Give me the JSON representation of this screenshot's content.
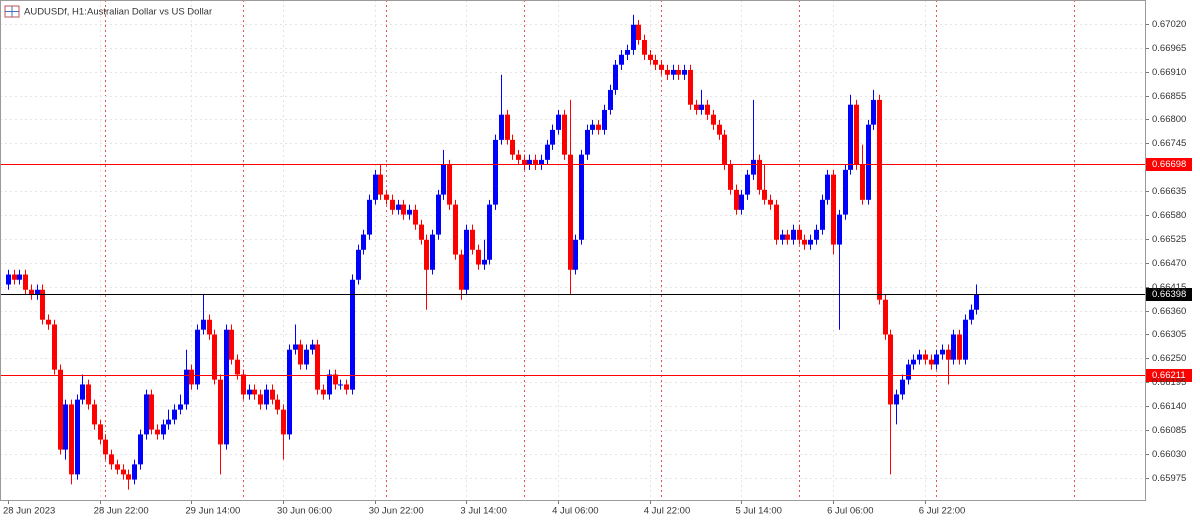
{
  "chart_data": {
    "type": "candlestick",
    "symbol": "AUDUSDf, H1:",
    "title": "Australian Dollar vs US Dollar",
    "up_color": "#0000ff",
    "down_color": "#ff0000",
    "grid": true,
    "ylim": [
      0.65924,
      0.67075
    ],
    "yticks": [
      {
        "value": 0.6702,
        "label": "0.67020"
      },
      0.66965,
      {
        "value": 0.6691,
        "label": "0.66910"
      },
      0.66855,
      {
        "value": 0.668,
        "label": "0.66800"
      },
      0.66745,
      0.66635,
      {
        "value": 0.6658,
        "label": "0.66580"
      },
      0.66525,
      {
        "value": 0.6647,
        "label": "0.66470"
      },
      0.66415,
      {
        "value": 0.6636,
        "label": "0.66360"
      },
      0.66305,
      {
        "value": 0.6625,
        "label": "0.66250"
      },
      0.66195,
      {
        "value": 0.6614,
        "label": "0.66140"
      },
      0.66085,
      {
        "value": 0.6603,
        "label": "0.66030"
      },
      0.65975
    ],
    "levels": [
      {
        "price": 0.66698,
        "color": "#ff0000"
      },
      {
        "price": 0.66398,
        "color": "#000000"
      },
      {
        "price": 0.66211,
        "color": "#ff0000"
      }
    ],
    "categories": [
      "28 Jun 2023",
      null,
      null,
      null,
      null,
      null,
      null,
      null,
      null,
      null,
      null,
      null,
      null,
      null,
      null,
      null,
      "28 Jun 22:00",
      null,
      null,
      null,
      null,
      null,
      null,
      null,
      null,
      null,
      null,
      null,
      null,
      null,
      null,
      null,
      "29 Jun 14:00",
      null,
      null,
      null,
      null,
      null,
      null,
      null,
      null,
      null,
      null,
      null,
      null,
      null,
      null,
      null,
      "30 Jun 06:00",
      null,
      null,
      null,
      null,
      null,
      null,
      null,
      null,
      null,
      null,
      null,
      null,
      null,
      null,
      null,
      "30 Jun 22:00",
      null,
      null,
      null,
      null,
      null,
      null,
      null,
      null,
      null,
      null,
      null,
      null,
      null,
      null,
      null,
      "3 Jul 14:00",
      null,
      null,
      null,
      null,
      null,
      null,
      null,
      null,
      null,
      null,
      null,
      null,
      null,
      null,
      null,
      "4 Jul 06:00",
      null,
      null,
      null,
      null,
      null,
      null,
      null,
      null,
      null,
      null,
      null,
      null,
      null,
      null,
      null,
      "4 Jul 22:00",
      null,
      null,
      null,
      null,
      null,
      null,
      null,
      null,
      null,
      null,
      null,
      null,
      null,
      null,
      null,
      "5 Jul 14:00",
      null,
      null,
      null,
      null,
      null,
      null,
      null,
      null,
      null,
      null,
      null,
      null,
      null,
      null,
      null,
      "6 Jul 06:00",
      null,
      null,
      null,
      null,
      null,
      null,
      null,
      null,
      null,
      null,
      null,
      null,
      null,
      null,
      null,
      "6 Jul 22:00",
      null,
      null,
      null,
      null,
      null,
      null,
      null,
      null,
      null
    ],
    "open": [
      0.6642,
      0.66443,
      0.66431,
      0.66443,
      0.66408,
      0.66397,
      0.66408,
      0.66339,
      0.66328,
      0.66224,
      0.6604,
      0.66144,
      0.65983,
      0.66155,
      0.6619,
      0.66144,
      0.66098,
      0.66063,
      0.66029,
      0.66006,
      0.65994,
      0.65983,
      0.65971,
      0.66006,
      0.66075,
      0.66167,
      0.66086,
      0.66075,
      0.66098,
      0.66109,
      0.66132,
      0.66144,
      0.66224,
      0.6619,
      0.66316,
      0.66339,
      0.66305,
      0.66201,
      0.66052,
      0.66316,
      0.66247,
      0.66213,
      0.66167,
      0.66178,
      0.66167,
      0.66144,
      0.66178,
      0.66155,
      0.66132,
      0.66075,
      0.6627,
      0.66282,
      0.66236,
      0.6627,
      0.66282,
      0.66178,
      0.66167,
      0.66213,
      0.6619,
      0.6619,
      0.66178,
      0.66431,
      0.665,
      0.66535,
      0.66615,
      0.66673,
      0.66627,
      0.66615,
      0.66592,
      0.66604,
      0.66581,
      0.66592,
      0.66558,
      0.66523,
      0.66454,
      0.66535,
      0.66627,
      0.66696,
      0.66604,
      0.66489,
      0.66408,
      0.66546,
      0.665,
      0.66466,
      0.66477,
      0.66604,
      0.66753,
      0.66811,
      0.66753,
      0.66719,
      0.66707,
      0.66696,
      0.66707,
      0.66696,
      0.66707,
      0.66742,
      0.66776,
      0.66811,
      0.66719,
      0.66454,
      0.66523,
      0.66719,
      0.66776,
      0.66788,
      0.66776,
      0.66822,
      0.66868,
      0.66926,
      0.66949,
      0.6696,
      0.67018,
      0.66983,
      0.66949,
      0.66937,
      0.66926,
      0.66914,
      0.66903,
      0.66914,
      0.66903,
      0.66914,
      0.66834,
      0.66822,
      0.66834,
      0.66811,
      0.66788,
      0.66765,
      0.66696,
      0.66638,
      0.66592,
      0.66627,
      0.66673,
      0.66707,
      0.66638,
      0.66615,
      0.66604,
      0.66523,
      0.66535,
      0.66523,
      0.66546,
      0.66523,
      0.66512,
      0.66523,
      0.66546,
      0.66615,
      0.66673,
      0.66512,
      0.66581,
      0.66684,
      0.66834,
      0.66696,
      0.66615,
      0.66788,
      0.66845,
      0.66385,
      0.66305,
      0.66144,
      0.66167,
      0.66201,
      0.66236,
      0.66247,
      0.66259,
      0.66247,
      0.66236,
      0.66259,
      0.6627,
      0.66247,
      0.66305,
      0.66247,
      0.66339,
      0.66362
    ],
    "high": [
      0.66454,
      0.66454,
      0.66454,
      0.66454,
      0.6642,
      0.6642,
      0.6642,
      0.66351,
      0.66339,
      0.66236,
      0.66155,
      0.66155,
      0.66167,
      0.66213,
      0.66201,
      0.66155,
      0.66109,
      0.66075,
      0.6604,
      0.66017,
      0.66006,
      0.65994,
      0.66017,
      0.66086,
      0.66178,
      0.66178,
      0.66098,
      0.66109,
      0.66132,
      0.66144,
      0.66167,
      0.6627,
      0.66236,
      0.66328,
      0.66397,
      0.66351,
      0.66316,
      0.66213,
      0.66328,
      0.66328,
      0.66259,
      0.66224,
      0.6619,
      0.6619,
      0.66178,
      0.6619,
      0.6619,
      0.66167,
      0.66144,
      0.66282,
      0.66328,
      0.66293,
      0.66282,
      0.66293,
      0.66293,
      0.6619,
      0.66224,
      0.66224,
      0.66201,
      0.66201,
      0.66443,
      0.66512,
      0.66546,
      0.66627,
      0.66684,
      0.66696,
      0.66638,
      0.66627,
      0.66615,
      0.66615,
      0.66604,
      0.66604,
      0.66569,
      0.66535,
      0.66546,
      0.66638,
      0.6673,
      0.66707,
      0.66615,
      0.665,
      0.66558,
      0.66558,
      0.66512,
      0.66523,
      0.66615,
      0.66765,
      0.66903,
      0.66822,
      0.66765,
      0.6673,
      0.66719,
      0.66719,
      0.66719,
      0.66719,
      0.66753,
      0.66788,
      0.66822,
      0.66822,
      0.66845,
      0.66535,
      0.6673,
      0.66788,
      0.66799,
      0.66799,
      0.66834,
      0.6688,
      0.66937,
      0.6696,
      0.66972,
      0.67041,
      0.67029,
      0.66995,
      0.6696,
      0.66949,
      0.66937,
      0.66926,
      0.66926,
      0.66926,
      0.66926,
      0.66926,
      0.66845,
      0.66868,
      0.66845,
      0.66822,
      0.66799,
      0.66776,
      0.66707,
      0.6665,
      0.66638,
      0.66684,
      0.66845,
      0.66719,
      0.66696,
      0.66627,
      0.66615,
      0.66546,
      0.66546,
      0.66558,
      0.66558,
      0.66535,
      0.66535,
      0.66558,
      0.66627,
      0.66684,
      0.66684,
      0.66592,
      0.66696,
      0.66857,
      0.66845,
      0.66742,
      0.66799,
      0.66868,
      0.66857,
      0.66397,
      0.66316,
      0.66178,
      0.66213,
      0.66247,
      0.66259,
      0.6627,
      0.6627,
      0.66259,
      0.6627,
      0.66282,
      0.66282,
      0.66316,
      0.66316,
      0.66351,
      0.66374,
      0.6642
    ],
    "low": [
      0.66408,
      0.6642,
      0.6642,
      0.66397,
      0.66385,
      0.66385,
      0.66328,
      0.66316,
      0.66213,
      0.66029,
      0.66017,
      0.6596,
      0.65971,
      0.66144,
      0.66132,
      0.66086,
      0.66052,
      0.66017,
      0.65994,
      0.65983,
      0.65971,
      0.65948,
      0.6596,
      0.65994,
      0.66063,
      0.66075,
      0.66063,
      0.66063,
      0.66086,
      0.66098,
      0.66121,
      0.66132,
      0.66178,
      0.66178,
      0.66305,
      0.66293,
      0.6619,
      0.65983,
      0.6604,
      0.66236,
      0.66201,
      0.66155,
      0.66155,
      0.66155,
      0.66132,
      0.66132,
      0.66144,
      0.66121,
      0.66017,
      0.66063,
      0.66259,
      0.66224,
      0.66224,
      0.66259,
      0.66167,
      0.66155,
      0.66155,
      0.66178,
      0.66178,
      0.66167,
      0.66167,
      0.6642,
      0.66489,
      0.66523,
      0.66604,
      0.66615,
      0.66604,
      0.66581,
      0.66581,
      0.66569,
      0.66569,
      0.66546,
      0.66512,
      0.66362,
      0.66443,
      0.66523,
      0.66615,
      0.66592,
      0.66477,
      0.66385,
      0.66397,
      0.66489,
      0.66454,
      0.66454,
      0.66466,
      0.66592,
      0.66742,
      0.66742,
      0.66707,
      0.66696,
      0.66684,
      0.66684,
      0.66684,
      0.66684,
      0.66696,
      0.6673,
      0.66765,
      0.66707,
      0.66397,
      0.66443,
      0.66512,
      0.66707,
      0.66765,
      0.66765,
      0.66765,
      0.66811,
      0.66857,
      0.66914,
      0.66937,
      0.66949,
      0.66972,
      0.66937,
      0.66926,
      0.66914,
      0.66903,
      0.66891,
      0.66891,
      0.66891,
      0.66891,
      0.66822,
      0.66811,
      0.66811,
      0.66799,
      0.66776,
      0.66753,
      0.66684,
      0.66627,
      0.66581,
      0.66581,
      0.66615,
      0.66661,
      0.66627,
      0.66604,
      0.66592,
      0.66512,
      0.66512,
      0.66512,
      0.66512,
      0.66512,
      0.665,
      0.665,
      0.66512,
      0.66535,
      0.66604,
      0.66489,
      0.66316,
      0.66569,
      0.66673,
      0.66684,
      0.66604,
      0.66604,
      0.66776,
      0.66374,
      0.66293,
      0.65983,
      0.66098,
      0.66155,
      0.6619,
      0.66224,
      0.66236,
      0.66236,
      0.66224,
      0.66224,
      0.66247,
      0.6619,
      0.66236,
      0.66236,
      0.66236,
      0.66328,
      0.66351
    ],
    "close": [
      0.66443,
      0.66431,
      0.66443,
      0.66408,
      0.66397,
      0.66408,
      0.66339,
      0.66328,
      0.66224,
      0.6604,
      0.66144,
      0.65983,
      0.66155,
      0.6619,
      0.66144,
      0.66098,
      0.66063,
      0.66029,
      0.66006,
      0.65994,
      0.65983,
      0.65971,
      0.66006,
      0.66075,
      0.66167,
      0.66086,
      0.66075,
      0.66098,
      0.66109,
      0.66132,
      0.66144,
      0.66224,
      0.6619,
      0.66316,
      0.66339,
      0.66305,
      0.66201,
      0.66052,
      0.66316,
      0.66247,
      0.66213,
      0.66167,
      0.66178,
      0.66167,
      0.66144,
      0.66178,
      0.66155,
      0.66132,
      0.66075,
      0.6627,
      0.66282,
      0.66236,
      0.6627,
      0.66282,
      0.66178,
      0.66167,
      0.66213,
      0.6619,
      0.6619,
      0.66178,
      0.66431,
      0.665,
      0.66535,
      0.66615,
      0.66673,
      0.66627,
      0.66615,
      0.66592,
      0.66604,
      0.66581,
      0.66592,
      0.66558,
      0.66523,
      0.66454,
      0.66535,
      0.66627,
      0.66696,
      0.66604,
      0.66489,
      0.66408,
      0.66546,
      0.665,
      0.66466,
      0.66477,
      0.66604,
      0.66753,
      0.66811,
      0.66753,
      0.66719,
      0.66707,
      0.66696,
      0.66707,
      0.66696,
      0.66707,
      0.66742,
      0.66776,
      0.66811,
      0.66719,
      0.66454,
      0.66523,
      0.66719,
      0.66776,
      0.66788,
      0.66776,
      0.66822,
      0.66868,
      0.66926,
      0.66949,
      0.6696,
      0.67018,
      0.66983,
      0.66949,
      0.66937,
      0.66926,
      0.66914,
      0.66903,
      0.66914,
      0.66903,
      0.66914,
      0.66834,
      0.66822,
      0.66834,
      0.66811,
      0.66788,
      0.66765,
      0.66696,
      0.66638,
      0.66592,
      0.66627,
      0.66673,
      0.66707,
      0.66638,
      0.66615,
      0.66604,
      0.66523,
      0.66535,
      0.66523,
      0.66546,
      0.66523,
      0.66512,
      0.66523,
      0.66546,
      0.66615,
      0.66673,
      0.66512,
      0.66581,
      0.66684,
      0.66834,
      0.66696,
      0.66615,
      0.66788,
      0.66845,
      0.66385,
      0.66305,
      0.66144,
      0.66167,
      0.66201,
      0.66236,
      0.66247,
      0.66259,
      0.66247,
      0.66236,
      0.66259,
      0.6627,
      0.66247,
      0.66305,
      0.66247,
      0.66339,
      0.66362,
      0.66398
    ]
  }
}
